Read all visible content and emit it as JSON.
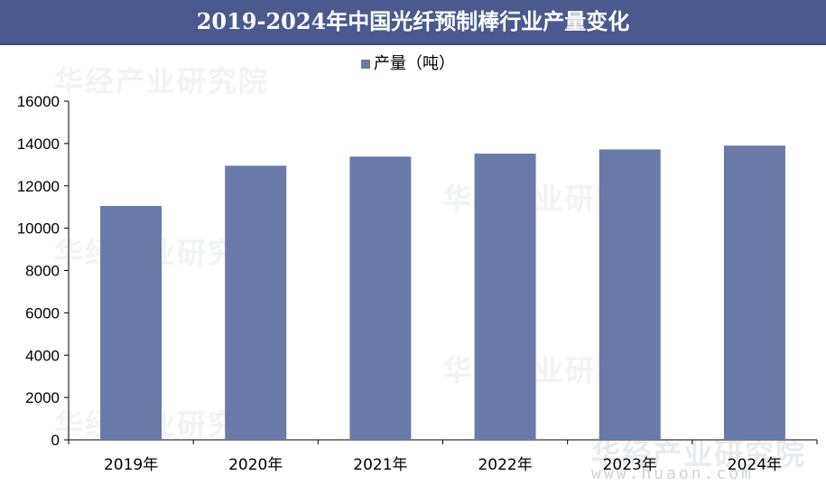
{
  "title": "2019-2024年中国光纤预制棒行业产量变化",
  "watermark": {
    "brand": "华经产业研究院",
    "url": "www.huaon.com"
  },
  "colors": {
    "title_bg": "#4a5a8f",
    "bar": "#6a7aa8",
    "axis": "#000000",
    "text": "#000000"
  },
  "chart_data": {
    "type": "bar",
    "categories": [
      "2019年",
      "2020年",
      "2021年",
      "2022年",
      "2023年",
      "2024年"
    ],
    "series": [
      {
        "name": "产量（吨）",
        "values": [
          11050,
          12950,
          13380,
          13520,
          13720,
          13900
        ]
      }
    ],
    "legend": "产量（吨）",
    "legend_position": "top",
    "ylim": [
      0,
      16000
    ],
    "yticks": [
      0,
      2000,
      4000,
      6000,
      8000,
      10000,
      12000,
      14000,
      16000
    ],
    "grid": false,
    "xlabel": "",
    "ylabel": ""
  }
}
